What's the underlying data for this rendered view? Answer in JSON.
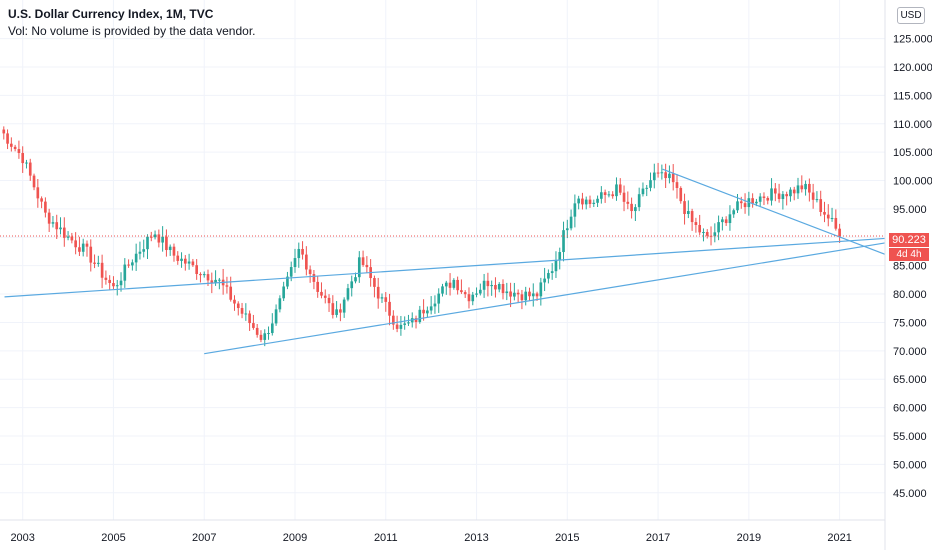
{
  "header": {
    "title": "U.S. Dollar Currency Index, 1M, TVC",
    "volume_note": "Vol: No volume is provided by the data vendor."
  },
  "currency_button": "USD",
  "last_price_label": "90.223",
  "countdown_label": "4d 4h",
  "colors": {
    "up": "#26a69a",
    "down": "#ef5350",
    "trendline": "#5aa9e0",
    "grid": "#f0f3fa",
    "price_line": "#ef5350"
  },
  "chart_data": {
    "type": "candlestick",
    "title": "U.S. Dollar Currency Index, 1M, TVC",
    "x_range": [
      2002.5,
      2022.0
    ],
    "y_range": [
      40.2,
      131.8
    ],
    "x_ticks": [
      "2003",
      "2005",
      "2007",
      "2009",
      "2011",
      "2013",
      "2015",
      "2017",
      "2019",
      "2021"
    ],
    "y_ticks": [
      "45.000",
      "50.000",
      "55.000",
      "60.000",
      "65.000",
      "70.000",
      "75.000",
      "80.000",
      "85.000",
      "90.000",
      "95.000",
      "100.000",
      "105.000",
      "110.000",
      "115.000",
      "120.000",
      "125.000"
    ],
    "last_price": 90.223,
    "anchors": [
      [
        2002.5,
        109.0
      ],
      [
        2003.0,
        104.0
      ],
      [
        2003.5,
        94.0
      ],
      [
        2004.0,
        90.0
      ],
      [
        2004.4,
        87.5
      ],
      [
        2004.8,
        83.0
      ],
      [
        2005.0,
        81.0
      ],
      [
        2005.4,
        86.0
      ],
      [
        2005.9,
        91.0
      ],
      [
        2006.3,
        87.0
      ],
      [
        2006.9,
        84.0
      ],
      [
        2007.3,
        82.5
      ],
      [
        2007.8,
        77.0
      ],
      [
        2008.3,
        72.0
      ],
      [
        2008.6,
        77.0
      ],
      [
        2009.1,
        88.0
      ],
      [
        2009.5,
        81.0
      ],
      [
        2009.9,
        76.0
      ],
      [
        2010.45,
        86.0
      ],
      [
        2010.9,
        79.0
      ],
      [
        2011.3,
        74.0
      ],
      [
        2011.6,
        75.0
      ],
      [
        2011.9,
        78.0
      ],
      [
        2012.5,
        82.5
      ],
      [
        2012.8,
        79.5
      ],
      [
        2013.3,
        82.5
      ],
      [
        2013.7,
        80.5
      ],
      [
        2014.3,
        79.5
      ],
      [
        2014.7,
        85.0
      ],
      [
        2015.2,
        97.5
      ],
      [
        2015.5,
        96.0
      ],
      [
        2016.1,
        98.5
      ],
      [
        2016.4,
        94.0
      ],
      [
        2016.9,
        101.0
      ],
      [
        2017.3,
        100.0
      ],
      [
        2017.7,
        93.0
      ],
      [
        2018.1,
        89.5
      ],
      [
        2018.6,
        94.5
      ],
      [
        2019.0,
        96.5
      ],
      [
        2019.4,
        97.5
      ],
      [
        2019.9,
        98.0
      ],
      [
        2020.2,
        99.0
      ],
      [
        2020.5,
        96.0
      ],
      [
        2020.8,
        93.0
      ],
      [
        2021.0,
        90.2
      ]
    ],
    "trendlines": [
      {
        "from": [
          2002.6,
          79.5
        ],
        "to": [
          2022.0,
          89.8
        ]
      },
      {
        "from": [
          2007.0,
          69.5
        ],
        "to": [
          2022.0,
          89.0
        ]
      },
      {
        "from": [
          2017.1,
          102.0
        ],
        "to": [
          2022.0,
          87.0
        ]
      }
    ]
  }
}
